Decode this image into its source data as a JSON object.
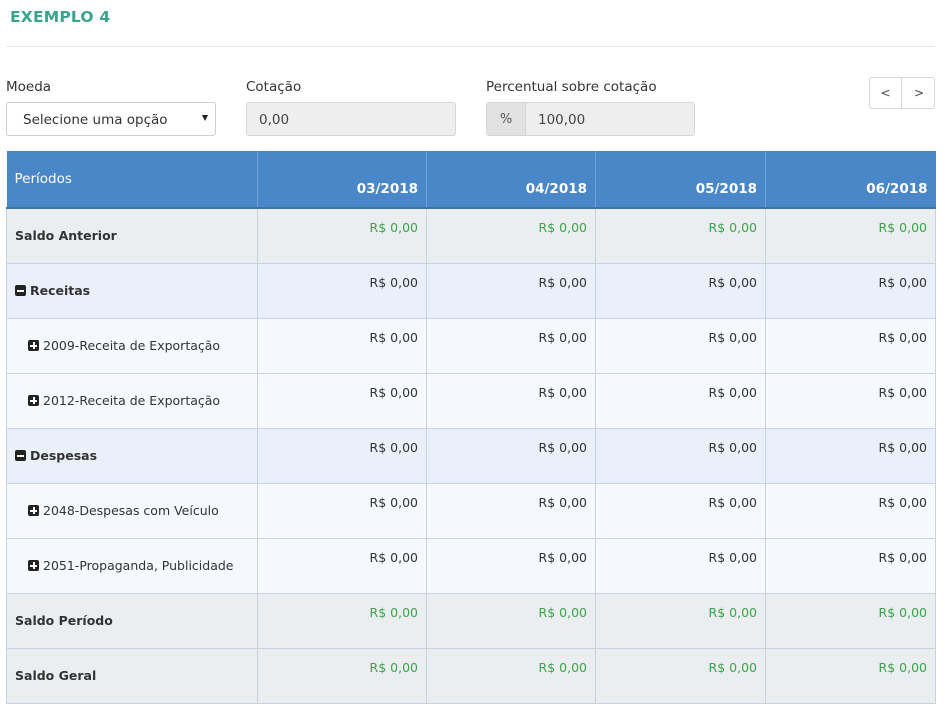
{
  "title": "EXEMPLO 4",
  "filters": {
    "moeda_label": "Moeda",
    "moeda_value": "Selecione uma opção",
    "cotacao_label": "Cotação",
    "cotacao_value": "0,00",
    "percentual_label": "Percentual sobre cotação",
    "percentual_addon": "%",
    "percentual_value": "100,00"
  },
  "pager": {
    "prev": "<",
    "next": ">"
  },
  "table": {
    "header_first": "Períodos",
    "periods": [
      "03/2018",
      "04/2018",
      "05/2018",
      "06/2018"
    ],
    "rows": [
      {
        "label": "Saldo Anterior",
        "values": [
          "R$ 0,00",
          "R$ 0,00",
          "R$ 0,00",
          "R$ 0,00"
        ]
      },
      {
        "label": "Receitas",
        "values": [
          "R$ 0,00",
          "R$ 0,00",
          "R$ 0,00",
          "R$ 0,00"
        ]
      },
      {
        "label": "2009-Receita de Exportação",
        "values": [
          "R$ 0,00",
          "R$ 0,00",
          "R$ 0,00",
          "R$ 0,00"
        ]
      },
      {
        "label": "2012-Receita de Exportação",
        "values": [
          "R$ 0,00",
          "R$ 0,00",
          "R$ 0,00",
          "R$ 0,00"
        ]
      },
      {
        "label": "Despesas",
        "values": [
          "R$ 0,00",
          "R$ 0,00",
          "R$ 0,00",
          "R$ 0,00"
        ]
      },
      {
        "label": "2048-Despesas com Veículo",
        "values": [
          "R$ 0,00",
          "R$ 0,00",
          "R$ 0,00",
          "R$ 0,00"
        ]
      },
      {
        "label": "2051-Propaganda, Publicidade",
        "values": [
          "R$ 0,00",
          "R$ 0,00",
          "R$ 0,00",
          "R$ 0,00"
        ]
      },
      {
        "label": "Saldo Período",
        "values": [
          "R$ 0,00",
          "R$ 0,00",
          "R$ 0,00",
          "R$ 0,00"
        ]
      },
      {
        "label": "Saldo Geral",
        "values": [
          "R$ 0,00",
          "R$ 0,00",
          "R$ 0,00",
          "R$ 0,00"
        ]
      }
    ]
  },
  "colors": {
    "title": "#3aa38f",
    "header_bg": "#4a87c9",
    "positive": "#3ea24b"
  }
}
